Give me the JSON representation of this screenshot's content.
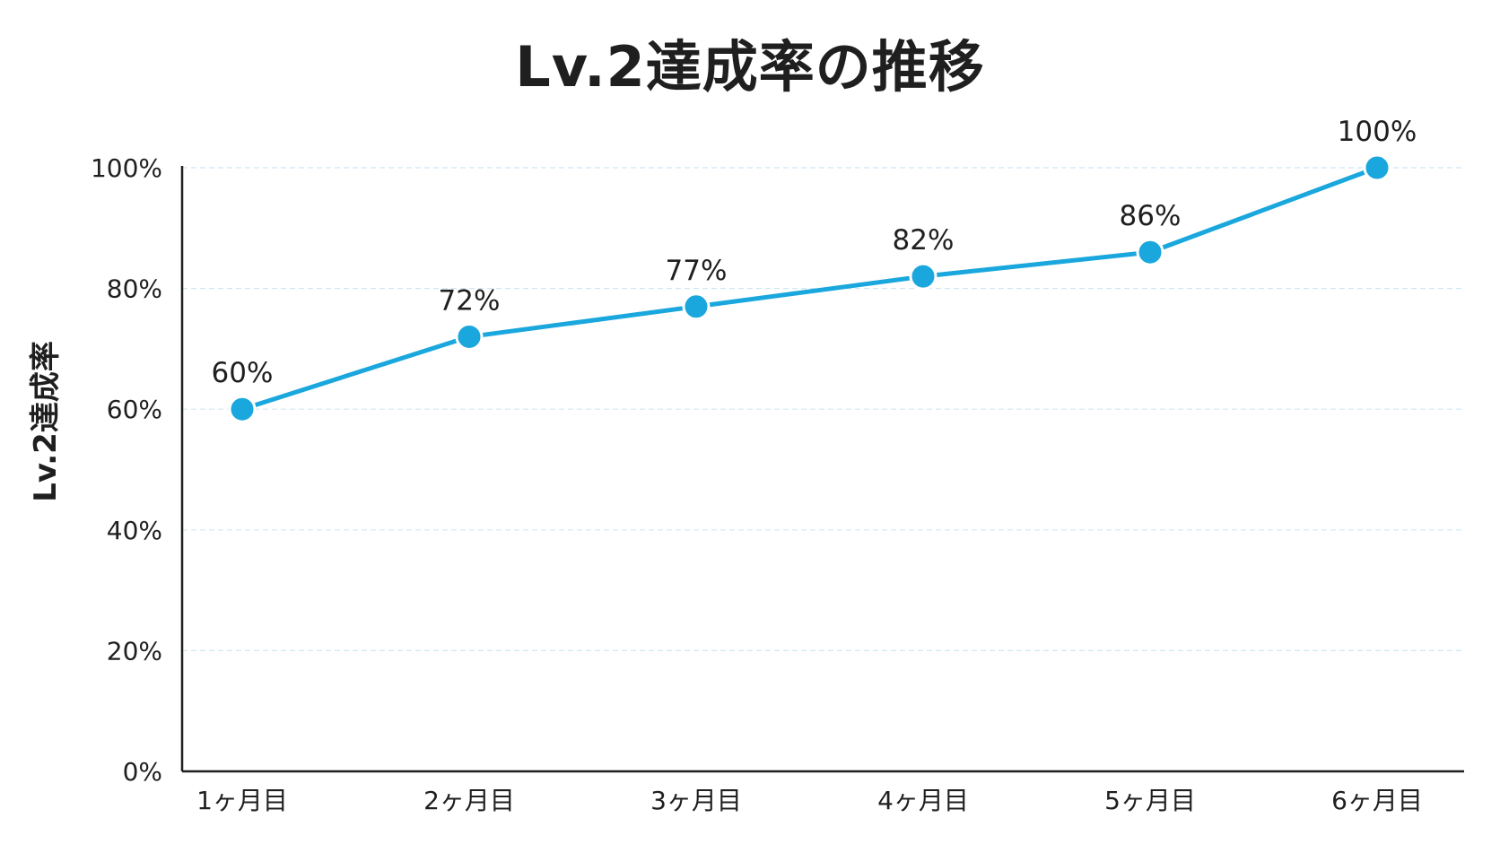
{
  "colors": {
    "line": "#1aa7dd",
    "grid": "#cfe8f3",
    "axis": "#1f1f1f",
    "text": "#1f1f1f"
  },
  "chart_data": {
    "type": "line",
    "title": "Lv.2達成率の推移",
    "xlabel": "",
    "ylabel": "Lv.2達成率",
    "categories": [
      "1ヶ月目",
      "2ヶ月目",
      "3ヶ月目",
      "4ヶ月目",
      "5ヶ月目",
      "6ヶ月目"
    ],
    "series": [
      {
        "values": [
          60,
          72,
          77,
          82,
          86,
          100
        ],
        "data_labels": [
          "60%",
          "72%",
          "77%",
          "82%",
          "86%",
          "100%"
        ]
      }
    ],
    "y_ticks": [
      0,
      20,
      40,
      60,
      80,
      100
    ],
    "y_tick_labels": [
      "0%",
      "20%",
      "40%",
      "60%",
      "80%",
      "100%"
    ],
    "ylim": [
      0,
      100
    ],
    "grid": true,
    "legend": "none"
  }
}
